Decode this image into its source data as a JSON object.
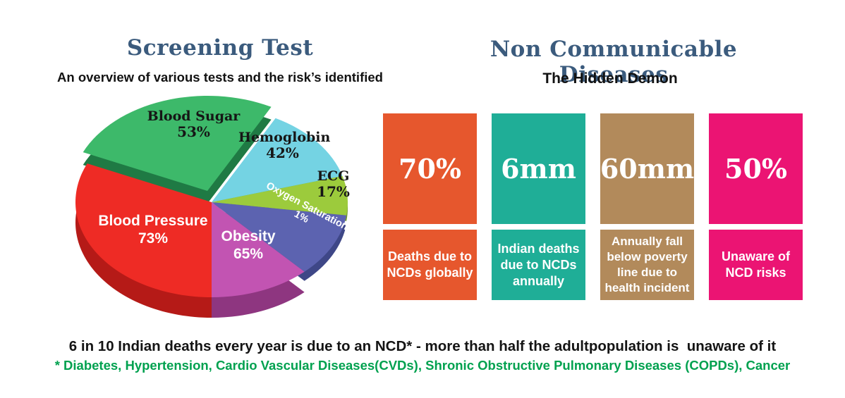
{
  "theme": {
    "title_color": "#3B5B7D",
    "text_color": "#121212",
    "footnote_green": "#00A14F",
    "background": "#FFFFFF"
  },
  "left_panel": {
    "title": "Screening Test",
    "subtitle": "An overview of various tests and the risk’s identified"
  },
  "right_panel": {
    "title": "Non Communicable Diseases",
    "subtitle": "The Hidden Demon",
    "cards": [
      {
        "value": "70%",
        "caption": "Deaths due to NCDs globally",
        "color": "#E6572D"
      },
      {
        "value": "6mm",
        "caption": "Indian deaths due to NCDs annually",
        "color": "#1FAE97"
      },
      {
        "value": "60mm",
        "caption": "Annually fall below poverty line due to health incident",
        "color": "#B28A5B"
      },
      {
        "value": "50%",
        "caption": "Unaware of NCD risks",
        "color": "#EB1473"
      }
    ]
  },
  "footer": {
    "line1": "6 in 10 Indian deaths every year is due to an NCD* - more than half the adultpopulation is  unaware of it",
    "line2": "* Diabetes, Hypertension, Cardio Vascular Diseases(CVDs), Shronic Obstructive Pulmonary Diseases (COPDs), Cancer"
  },
  "chart_data": {
    "type": "pie",
    "title": "Screening Test",
    "subtitle": "An overview of various tests and the risk’s identified",
    "style": "3d-exploded",
    "unit": "percent",
    "slices": [
      {
        "label": "Blood Sugar",
        "value": 53,
        "value_label": "53%",
        "color": "#3DB96A",
        "dark": "#1F7A44",
        "start_angle": 62,
        "end_angle": 156,
        "exploded": true,
        "label_color": "#161616"
      },
      {
        "label": "Hemoglobin",
        "value": 42,
        "value_label": "42%",
        "color": "#74D3E3",
        "dark": "#2BAFC2",
        "start_angle": 16,
        "end_angle": 62,
        "exploded": false,
        "label_color": "#161616"
      },
      {
        "label": "ECG",
        "value": 17,
        "value_label": "17%",
        "color": "#9CCB3C",
        "dark": "#71962B",
        "start_angle": -8,
        "end_angle": 16,
        "exploded": false,
        "label_color": "#161616"
      },
      {
        "label": "Oxygen Saturation",
        "value": 1,
        "value_label": "1%",
        "color": "#5C63B0",
        "dark": "#3E4787",
        "start_angle": -47,
        "end_angle": -8,
        "exploded": false,
        "label_color": "#FFFFFF"
      },
      {
        "label": "Obesity",
        "value": 65,
        "value_label": "65%",
        "color": "#C254B2",
        "dark": "#8E3680",
        "start_angle": -90,
        "end_angle": -47,
        "exploded": false,
        "label_color": "#FFFFFF"
      },
      {
        "label": "Blood Pressure",
        "value": 73,
        "value_label": "73%",
        "color": "#EE2B25",
        "dark": "#B51A17",
        "start_angle": 156,
        "end_angle": 270,
        "exploded": false,
        "label_color": "#FFFFFF"
      }
    ]
  }
}
